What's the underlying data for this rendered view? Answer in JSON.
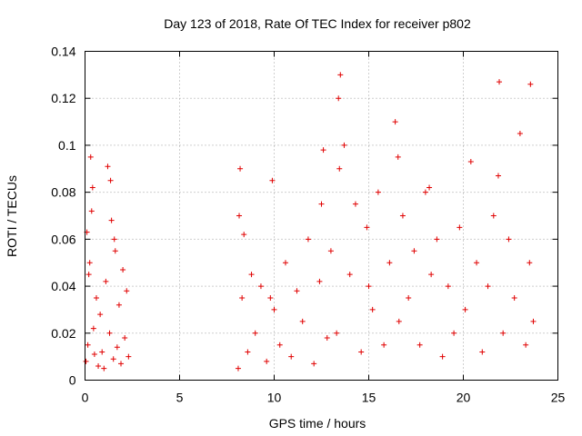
{
  "chart_data": {
    "type": "scatter",
    "title": "Day 123 of 2018, Rate Of TEC Index for receiver p802",
    "xlabel": "GPS time / hours",
    "ylabel": "ROTI / TECUs",
    "xlim": [
      0,
      25
    ],
    "ylim": [
      0,
      0.14
    ],
    "xticks": [
      "0",
      "5",
      "10",
      "15",
      "20",
      "25"
    ],
    "yticks": [
      "0",
      "0.02",
      "0.04",
      "0.06",
      "0.08",
      "0.1",
      "0.12",
      "0.14"
    ],
    "grid": true,
    "marker": "plus",
    "series_color": "#e00000",
    "x": [
      0.05,
      0.1,
      0.2,
      0.3,
      0.4,
      0.5,
      0.6,
      0.7,
      0.8,
      0.9,
      1.0,
      1.1,
      1.2,
      1.3,
      1.4,
      1.5,
      1.6,
      1.7,
      1.8,
      1.9,
      2.0,
      2.1,
      2.2,
      2.3,
      0.35,
      0.45,
      1.35,
      1.55,
      0.15,
      0.25,
      8.1,
      8.2,
      8.3,
      8.4,
      8.6,
      8.8,
      9.0,
      9.3,
      9.6,
      9.9,
      10.0,
      10.3,
      10.6,
      10.9,
      11.2,
      11.5,
      11.8,
      12.1,
      12.4,
      12.6,
      12.8,
      13.0,
      13.3,
      13.5,
      13.7,
      14.0,
      14.3,
      14.6,
      14.9,
      15.2,
      15.5,
      15.8,
      16.1,
      16.4,
      16.6,
      16.8,
      17.1,
      17.4,
      17.7,
      18.0,
      18.3,
      18.6,
      18.9,
      19.2,
      19.5,
      19.8,
      20.1,
      20.4,
      20.7,
      21.0,
      21.3,
      21.6,
      21.9,
      22.1,
      22.4,
      22.7,
      23.0,
      23.3,
      23.5,
      23.7,
      13.4,
      13.45,
      21.85,
      23.55,
      12.5,
      16.55,
      8.15,
      9.8,
      15.0,
      18.2
    ],
    "y": [
      0.008,
      0.063,
      0.045,
      0.095,
      0.082,
      0.011,
      0.035,
      0.006,
      0.028,
      0.012,
      0.005,
      0.042,
      0.091,
      0.02,
      0.068,
      0.009,
      0.055,
      0.014,
      0.032,
      0.007,
      0.047,
      0.018,
      0.038,
      0.01,
      0.072,
      0.022,
      0.085,
      0.06,
      0.015,
      0.05,
      0.005,
      0.09,
      0.035,
      0.062,
      0.012,
      0.045,
      0.02,
      0.04,
      0.008,
      0.085,
      0.03,
      0.015,
      0.05,
      0.01,
      0.038,
      0.025,
      0.06,
      0.007,
      0.042,
      0.098,
      0.018,
      0.055,
      0.02,
      0.13,
      0.1,
      0.045,
      0.075,
      0.012,
      0.065,
      0.03,
      0.08,
      0.015,
      0.05,
      0.11,
      0.025,
      0.07,
      0.035,
      0.055,
      0.015,
      0.08,
      0.045,
      0.06,
      0.01,
      0.04,
      0.02,
      0.065,
      0.03,
      0.093,
      0.05,
      0.012,
      0.04,
      0.07,
      0.127,
      0.02,
      0.06,
      0.035,
      0.105,
      0.015,
      0.05,
      0.025,
      0.12,
      0.09,
      0.087,
      0.126,
      0.075,
      0.095,
      0.07,
      0.035,
      0.04,
      0.082
    ]
  }
}
